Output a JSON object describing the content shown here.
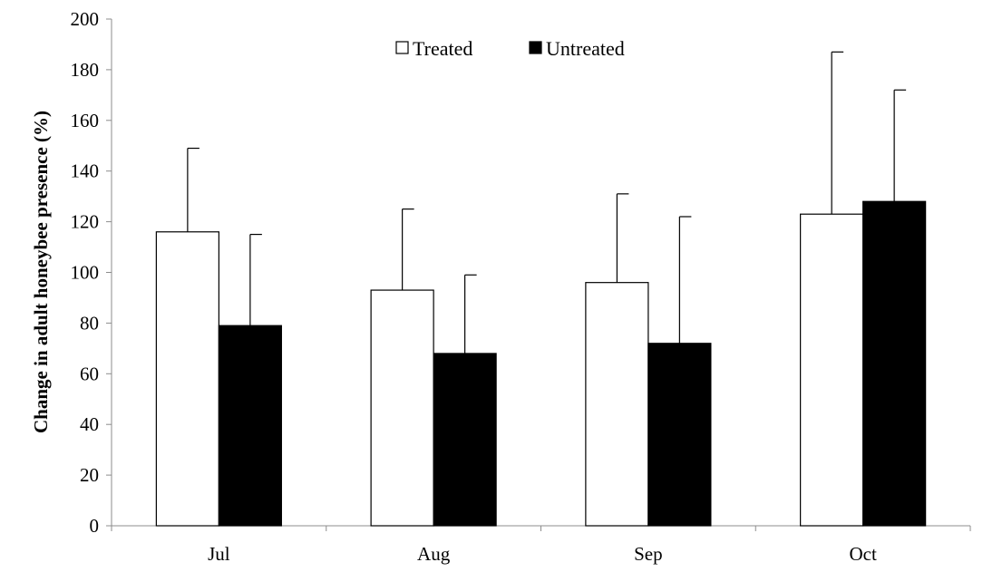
{
  "chart_data": {
    "type": "bar",
    "title": "",
    "xlabel": "",
    "ylabel": "Change in adult honeybee presence (%)",
    "ylim": [
      0,
      200
    ],
    "yticks": [
      0,
      20,
      40,
      60,
      80,
      100,
      120,
      140,
      160,
      180,
      200
    ],
    "categories": [
      "Jul",
      "Aug",
      "Sep",
      "Oct"
    ],
    "series": [
      {
        "name": "Treated",
        "color": "#ffffff",
        "values": [
          116,
          93,
          96,
          123
        ],
        "error_upper": [
          149,
          125,
          131,
          187
        ]
      },
      {
        "name": "Untreated",
        "color": "#000000",
        "values": [
          79,
          68,
          72,
          128
        ],
        "error_upper": [
          115,
          99,
          122,
          172
        ]
      }
    ],
    "legend_position": "top-center",
    "grid": false
  }
}
